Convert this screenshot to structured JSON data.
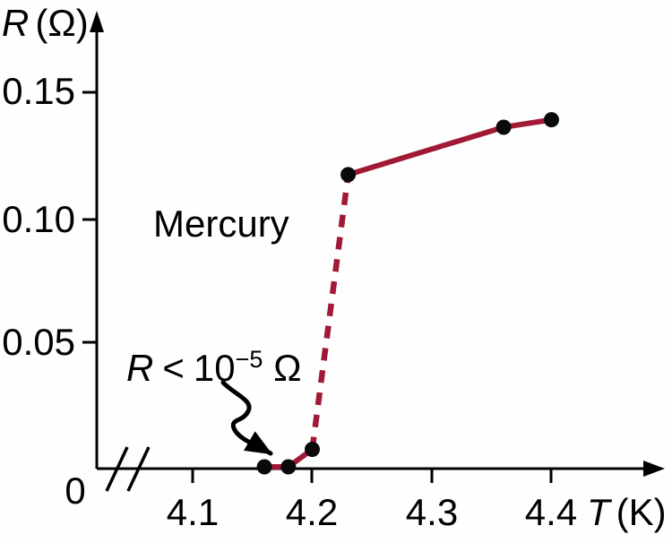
{
  "figure": {
    "background": "#fefefe",
    "axis_color": "#000000",
    "curve_color": "#a11a35",
    "point_color": "#0a0a0a"
  },
  "y_axis": {
    "symbol": "R",
    "unit": "(Ω)",
    "tick_labels": [
      "0.15",
      "0.10",
      "0.05"
    ],
    "origin_label": "0"
  },
  "x_axis": {
    "symbol": "T",
    "unit": "(K)",
    "tick_labels": [
      "4.1",
      "4.2",
      "4.3",
      "4.4"
    ]
  },
  "labels": {
    "series_name": "Mercury",
    "resistance_note": {
      "symbol": "R",
      "comparator": "<",
      "base": "10",
      "exponent": "−5",
      "unit": "Ω"
    }
  },
  "chart_data": {
    "type": "line",
    "xlabel": "T (K)",
    "ylabel": "R (Ω)",
    "xlim": [
      4.05,
      4.45
    ],
    "ylim": [
      0,
      0.165
    ],
    "x_ticks": [
      4.1,
      4.2,
      4.3,
      4.4
    ],
    "y_ticks": [
      0,
      0.05,
      0.1,
      0.15
    ],
    "x_axis_break": true,
    "grid": false,
    "legend": "none",
    "series": [
      {
        "name": "Mercury",
        "x": [
          4.16,
          4.18,
          4.2,
          4.23,
          4.36,
          4.4
        ],
        "y": [
          0.0,
          0.0,
          0.007,
          0.117,
          0.136,
          0.139
        ],
        "marker": "filled-circle",
        "color": "#a11a35"
      }
    ],
    "segments": [
      {
        "from": 0,
        "to": 2,
        "style": "solid"
      },
      {
        "from": 2,
        "to": 3,
        "style": "dashed"
      },
      {
        "from": 3,
        "to": 5,
        "style": "solid"
      }
    ],
    "annotations": [
      "Mercury",
      "R < 10⁻⁵ Ω"
    ]
  }
}
